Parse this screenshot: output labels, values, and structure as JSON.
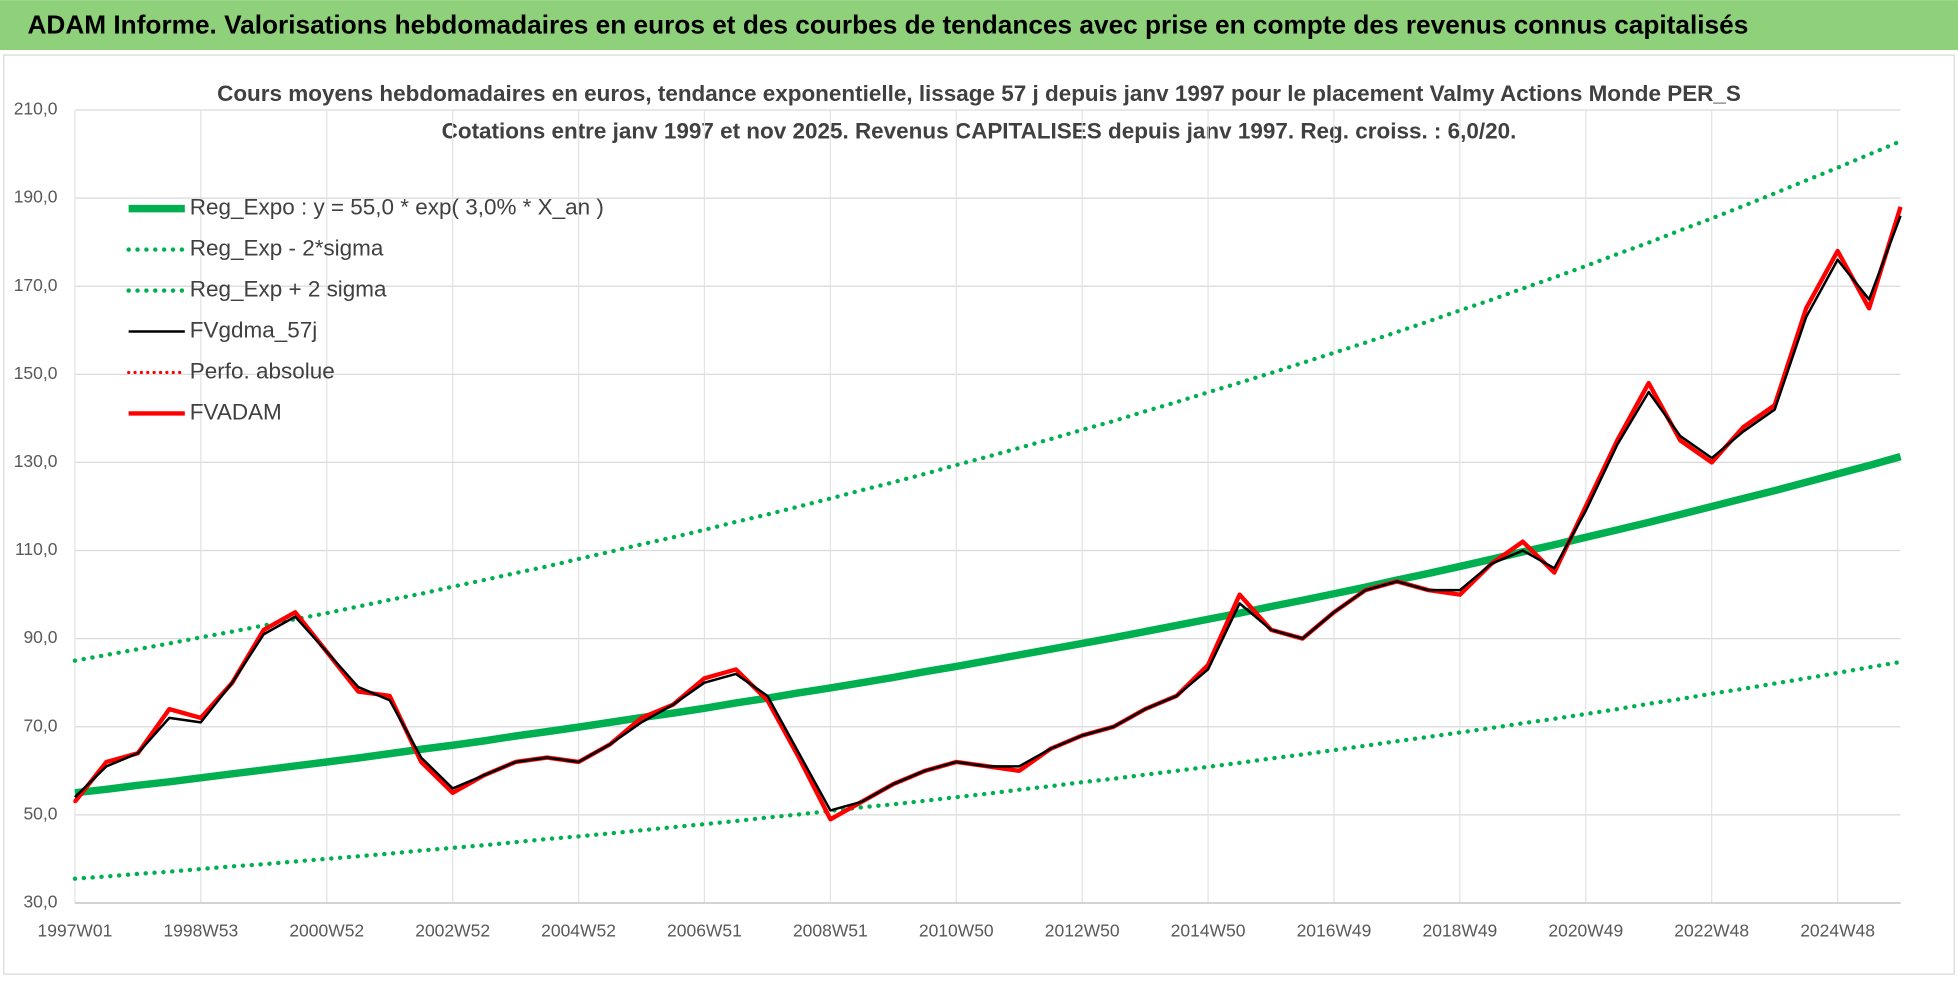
{
  "header": {
    "title": "ADAM Informe. Valorisations hebdomadaires en euros et des courbes de tendances avec prise en compte des revenus connus capitalisés"
  },
  "chart_data": {
    "type": "line",
    "title": "Cours moyens hebdomadaires en euros, tendance exponentielle, lissage 57 j depuis janv 1997 pour le placement Valmy Actions Monde PER_S",
    "subtitle": "Cotations entre janv 1997 et nov 2025. Revenus CAPITALISES depuis janv 1997. Reg. croiss. : 6,0/20.",
    "categories": [
      "1997W01",
      null,
      null,
      null,
      "1998W53",
      null,
      null,
      null,
      "2000W52",
      null,
      null,
      null,
      "2002W52",
      null,
      null,
      null,
      "2004W52",
      null,
      null,
      null,
      "2006W51",
      null,
      null,
      null,
      "2008W51",
      null,
      null,
      null,
      "2010W50",
      null,
      null,
      null,
      "2012W50",
      null,
      null,
      null,
      "2014W50",
      null,
      null,
      null,
      "2016W49",
      null,
      null,
      null,
      "2018W49",
      null,
      null,
      null,
      "2020W49",
      null,
      null,
      null,
      "2022W48",
      null,
      null,
      null,
      "2024W48",
      null,
      null
    ],
    "ylim": [
      30,
      210
    ],
    "yticks": [
      {
        "value": 30,
        "label": "30,0"
      },
      {
        "value": 50,
        "label": "50,0"
      },
      {
        "value": 70,
        "label": "70,0"
      },
      {
        "value": 90,
        "label": "90,0"
      },
      {
        "value": 110,
        "label": "110,0"
      },
      {
        "value": 130,
        "label": "130,0"
      },
      {
        "value": 150,
        "label": "150,0"
      },
      {
        "value": 170,
        "label": "170,0"
      },
      {
        "value": 190,
        "label": "190,0"
      },
      {
        "value": 210,
        "label": "210,0"
      }
    ],
    "grid": true,
    "legend": "top-left",
    "series": [
      {
        "name": "Reg_Expo : y = 55,0 * exp( 3,0% *  X_an )",
        "color": "#00b050",
        "style": "thick",
        "values": [
          55.0,
          55.8,
          56.7,
          57.5,
          58.4,
          59.3,
          60.2,
          61.1,
          62.0,
          62.9,
          63.9,
          64.9,
          65.8,
          66.8,
          67.9,
          68.9,
          69.9,
          71.0,
          72.1,
          73.1,
          74.2,
          75.4,
          76.5,
          77.7,
          78.8,
          80.0,
          81.2,
          82.5,
          83.7,
          85.0,
          86.3,
          87.6,
          88.9,
          90.2,
          91.6,
          93.0,
          94.4,
          95.8,
          97.3,
          98.7,
          100.2,
          101.7,
          103.3,
          104.8,
          106.4,
          108.0,
          109.7,
          111.3,
          113.0,
          114.7,
          116.4,
          118.2,
          120.0,
          121.8,
          123.6,
          125.5,
          127.4,
          129.3,
          131.3
        ]
      },
      {
        "name": "Reg_Exp - 2*sigma",
        "color": "#00b050",
        "style": "dotted",
        "values": [
          35.5,
          36.0,
          36.6,
          37.1,
          37.7,
          38.3,
          38.8,
          39.4,
          40.0,
          40.6,
          41.2,
          41.9,
          42.5,
          43.1,
          43.8,
          44.5,
          45.1,
          45.8,
          46.5,
          47.2,
          47.9,
          48.6,
          49.4,
          50.1,
          50.9,
          51.7,
          52.4,
          53.2,
          54.0,
          54.8,
          55.7,
          56.5,
          57.4,
          58.2,
          59.1,
          60.0,
          60.9,
          61.8,
          62.8,
          63.7,
          64.7,
          65.7,
          66.7,
          67.7,
          68.7,
          69.7,
          70.8,
          71.8,
          72.9,
          74.0,
          75.2,
          76.3,
          77.5,
          78.6,
          79.8,
          81.0,
          82.2,
          83.5,
          84.7
        ]
      },
      {
        "name": "Reg_Exp + 2 sigma",
        "color": "#00b050",
        "style": "dotted",
        "values": [
          85.0,
          86.3,
          87.6,
          88.9,
          90.3,
          91.6,
          93.0,
          94.4,
          95.8,
          97.3,
          98.8,
          100.2,
          101.8,
          103.3,
          104.9,
          106.4,
          108.1,
          109.7,
          111.4,
          113.0,
          114.7,
          116.5,
          118.2,
          120.0,
          121.8,
          123.7,
          125.5,
          127.4,
          129.4,
          131.3,
          133.3,
          135.3,
          137.4,
          139.4,
          141.6,
          143.7,
          145.9,
          148.1,
          150.3,
          152.6,
          154.9,
          157.2,
          159.6,
          162.0,
          164.5,
          166.9,
          169.5,
          172.0,
          174.6,
          177.3,
          179.9,
          182.7,
          185.4,
          188.2,
          191.1,
          194.0,
          196.9,
          199.9,
          202.9
        ]
      },
      {
        "name": "FVADAM",
        "color": "#ff0000",
        "style": "bold",
        "values": [
          53,
          62,
          64,
          74,
          72,
          80,
          92,
          96,
          87,
          78,
          77,
          62,
          55,
          59,
          62,
          63,
          62,
          66,
          72,
          75,
          81,
          83,
          76,
          63,
          49,
          53,
          57,
          60,
          62,
          61,
          60,
          65,
          68,
          70,
          74,
          77,
          84,
          100,
          92,
          90,
          96,
          101,
          103,
          101,
          100,
          107,
          112,
          105,
          120,
          135,
          148,
          135,
          130,
          138,
          143,
          165,
          178,
          165,
          188
        ]
      },
      {
        "name": "Perfo. absolue",
        "color": "#ff0000",
        "style": "dotted-thin",
        "values": [
          53,
          62,
          64,
          74,
          72,
          80,
          92,
          96,
          87,
          78,
          77,
          62,
          55,
          59,
          62,
          63,
          62,
          66,
          72,
          75,
          81,
          83,
          76,
          63,
          49,
          53,
          57,
          60,
          62,
          61,
          60,
          65,
          68,
          70,
          74,
          77,
          84,
          100,
          92,
          90,
          96,
          101,
          103,
          101,
          100,
          107,
          112,
          105,
          120,
          135,
          148,
          135,
          130,
          138,
          143,
          165,
          178,
          165,
          188
        ]
      },
      {
        "name": "FVgdma_57j",
        "color": "#000000",
        "style": "solid",
        "values": [
          54,
          61,
          64,
          72,
          71,
          80,
          91,
          95,
          87,
          79,
          76,
          63,
          56,
          59,
          62,
          63,
          62,
          66,
          71,
          75,
          80,
          82,
          77,
          64,
          51,
          53,
          57,
          60,
          62,
          61,
          61,
          65,
          68,
          70,
          74,
          77,
          83,
          98,
          92,
          90,
          96,
          101,
          103,
          101,
          101,
          107,
          110,
          106,
          119,
          134,
          146,
          136,
          131,
          137,
          142,
          163,
          176,
          167,
          186
        ]
      }
    ],
    "legend_order": [
      0,
      1,
      2,
      5,
      4,
      3
    ]
  }
}
